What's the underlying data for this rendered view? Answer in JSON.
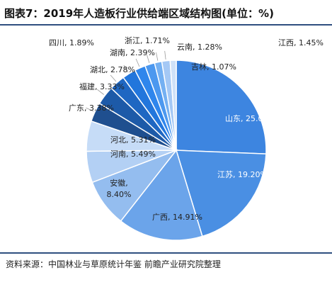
{
  "header": {
    "title": "图表7：2019年人造板行业供给端区域结构图(单位：%)"
  },
  "footer": {
    "source": "资料来源：中国林业与草原统计年鉴 前瞻产业研究院整理"
  },
  "chart_data": {
    "type": "pie",
    "title": "图表7：2019年人造板行业供给端区域结构图(单位：%)",
    "unit": "%",
    "slices": [
      {
        "name": "山东",
        "value": 25.04,
        "label": "山东, 25.04%",
        "color": "#3d85e0"
      },
      {
        "name": "江苏",
        "value": 19.2,
        "label": "江苏, 19.20%",
        "color": "#4a8fe3"
      },
      {
        "name": "广西",
        "value": 14.91,
        "label": "广西, 14.91%",
        "color": "#6ba4ea"
      },
      {
        "name": "安徽",
        "value": 8.4,
        "label_line1": "安徽,",
        "label_line2": "8.40%",
        "color": "#94bdef"
      },
      {
        "name": "河南",
        "value": 5.49,
        "label": "河南, 5.49%",
        "color": "#b3d0f4"
      },
      {
        "name": "河北",
        "value": 5.31,
        "label": "河北, 5.31%",
        "color": "#c6dcf7"
      },
      {
        "name": "广东",
        "value": 3.38,
        "label": "广东, 3.38%",
        "color": "#1f4f8f"
      },
      {
        "name": "福建",
        "value": 3.33,
        "label": "福建, 3.33%",
        "color": "#1d5aa8"
      },
      {
        "name": "湖北",
        "value": 2.78,
        "label": "湖北, 2.78%",
        "color": "#1f67c2"
      },
      {
        "name": "湖南",
        "value": 2.39,
        "label": "湖南, 2.39%",
        "color": "#2276dc"
      },
      {
        "name": "四川",
        "value": 1.89,
        "label": "四川, 1.89%",
        "color": "#2f86ec"
      },
      {
        "name": "浙江",
        "value": 1.71,
        "label": "浙江, 1.71%",
        "color": "#4c98ef"
      },
      {
        "name": "云南",
        "value": 1.28,
        "label": "云南, 1.28%",
        "color": "#74b0f2"
      },
      {
        "name": "江西",
        "value": 1.45,
        "label": "江西, 1.45%",
        "color": "#a4c8f5"
      },
      {
        "name": "吉林",
        "value": 1.07,
        "label": "吉林, 1.07%",
        "color": "#cfe1f8"
      }
    ]
  }
}
